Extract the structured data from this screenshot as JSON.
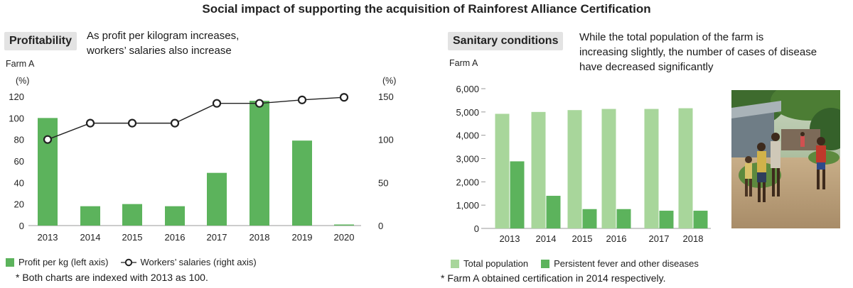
{
  "title": "Social impact of supporting the acquisition of Rainforest Alliance Certification",
  "left_panel": {
    "tag": "Profitability",
    "description_line1": "As profit per kilogram increases,",
    "description_line2": "workers’ salaries also increase",
    "farm_label": "Farm A",
    "left_unit": "(%)",
    "right_unit": "(%)",
    "legend_bar": "Profit per kg (left axis)",
    "legend_line": "Workers’ salaries (right axis)",
    "note": "* Both charts are indexed with 2013 as 100."
  },
  "right_panel": {
    "tag": "Sanitary conditions",
    "description_line1": "While the total population of the farm is",
    "description_line2": "increasing slightly, the number of cases of disease",
    "description_line3": "have decreased significantly",
    "farm_label": "Farm A",
    "legend_total": "Total population",
    "legend_disease": "Persistent fever and other diseases",
    "note": "* Farm A obtained certification in 2014 respectively."
  },
  "colors": {
    "dark_green": "#5cb35c",
    "light_green": "#a8d69b",
    "line": "#222222",
    "tag_bg": "#e3e3e3"
  },
  "chart_data": [
    {
      "type": "bar",
      "categories": [
        "2013",
        "2014",
        "2015",
        "2016",
        "2017",
        "2018",
        "2019",
        "2020"
      ],
      "series": [
        {
          "name": "Profit per kg (left axis)",
          "axis": "left",
          "kind": "bar",
          "values": [
            100,
            18,
            20,
            18,
            49,
            116,
            79,
            1
          ]
        },
        {
          "name": "Workers’ salaries (right axis)",
          "axis": "right",
          "kind": "line",
          "values": [
            100,
            119,
            119,
            119,
            142,
            142,
            146,
            149
          ]
        }
      ],
      "ylim_left": [
        0,
        120
      ],
      "yticks_left": [
        0,
        20,
        40,
        60,
        80,
        100,
        120
      ],
      "ylim_right": [
        0,
        150
      ],
      "yticks_right": [
        0,
        50,
        100,
        150
      ],
      "ylabel_left": "(%)",
      "ylabel_right": "(%)",
      "legend_position": "bottom"
    },
    {
      "type": "bar",
      "categories": [
        "2013",
        "2014",
        "2015",
        "2016",
        "2017",
        "2018"
      ],
      "series": [
        {
          "name": "Total population",
          "values": [
            4920,
            5000,
            5080,
            5130,
            5130,
            5160
          ]
        },
        {
          "name": "Persistent fever and other diseases",
          "values": [
            2880,
            1400,
            830,
            830,
            760,
            760
          ]
        }
      ],
      "ylim": [
        0,
        6000
      ],
      "yticks": [
        "0",
        "1,000",
        "2,000",
        "3,000",
        "4,000",
        "5,000",
        "6,000"
      ],
      "legend_position": "bottom"
    }
  ]
}
